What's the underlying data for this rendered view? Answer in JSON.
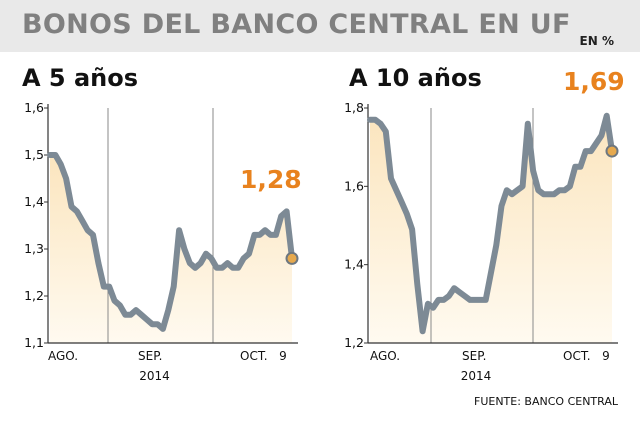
{
  "header": {
    "title": "BONOS DEL BANCO CENTRAL EN UF",
    "unit": "EN %"
  },
  "source": "FUENTE: BANCO CENTRAL",
  "colors": {
    "line": "#7d8a95",
    "area_top": "#fbe5be",
    "area_bottom": "#fffaf0",
    "accent": "#e8821e",
    "marker": "#e6a94e"
  },
  "chart_data": [
    {
      "type": "area",
      "title": "A 5 años",
      "ylim": [
        1.1,
        1.6
      ],
      "yticks": [
        "1,1",
        "1,2",
        "1,3",
        "1,4",
        "1,5",
        "1,6"
      ],
      "ytick_values": [
        1.1,
        1.2,
        1.3,
        1.4,
        1.5,
        1.6
      ],
      "xticks": [
        "AGO.",
        "SEP.",
        "OCT.",
        "9"
      ],
      "year_label": "2014",
      "last_value_label": "1,28",
      "values": [
        1.5,
        1.5,
        1.48,
        1.45,
        1.39,
        1.38,
        1.36,
        1.34,
        1.33,
        1.27,
        1.22,
        1.22,
        1.19,
        1.18,
        1.16,
        1.16,
        1.17,
        1.16,
        1.15,
        1.14,
        1.14,
        1.13,
        1.17,
        1.22,
        1.34,
        1.3,
        1.27,
        1.26,
        1.27,
        1.29,
        1.28,
        1.26,
        1.26,
        1.27,
        1.26,
        1.26,
        1.28,
        1.29,
        1.33,
        1.33,
        1.34,
        1.33,
        1.33,
        1.37,
        1.38,
        1.28
      ]
    },
    {
      "type": "area",
      "title": "A 10 años",
      "ylim": [
        1.2,
        1.8
      ],
      "yticks": [
        "1,2",
        "1,4",
        "1,6",
        "1,8"
      ],
      "ytick_values": [
        1.2,
        1.4,
        1.6,
        1.8
      ],
      "xticks": [
        "AGO.",
        "SEP.",
        "OCT.",
        "9"
      ],
      "year_label": "2014",
      "last_value_label": "1,69",
      "values": [
        1.77,
        1.77,
        1.76,
        1.74,
        1.62,
        1.59,
        1.56,
        1.53,
        1.49,
        1.35,
        1.23,
        1.3,
        1.29,
        1.31,
        1.31,
        1.32,
        1.34,
        1.33,
        1.32,
        1.31,
        1.31,
        1.31,
        1.31,
        1.38,
        1.45,
        1.55,
        1.59,
        1.58,
        1.59,
        1.6,
        1.76,
        1.64,
        1.59,
        1.58,
        1.58,
        1.58,
        1.59,
        1.59,
        1.6,
        1.65,
        1.65,
        1.69,
        1.69,
        1.71,
        1.73,
        1.78,
        1.69
      ]
    }
  ]
}
